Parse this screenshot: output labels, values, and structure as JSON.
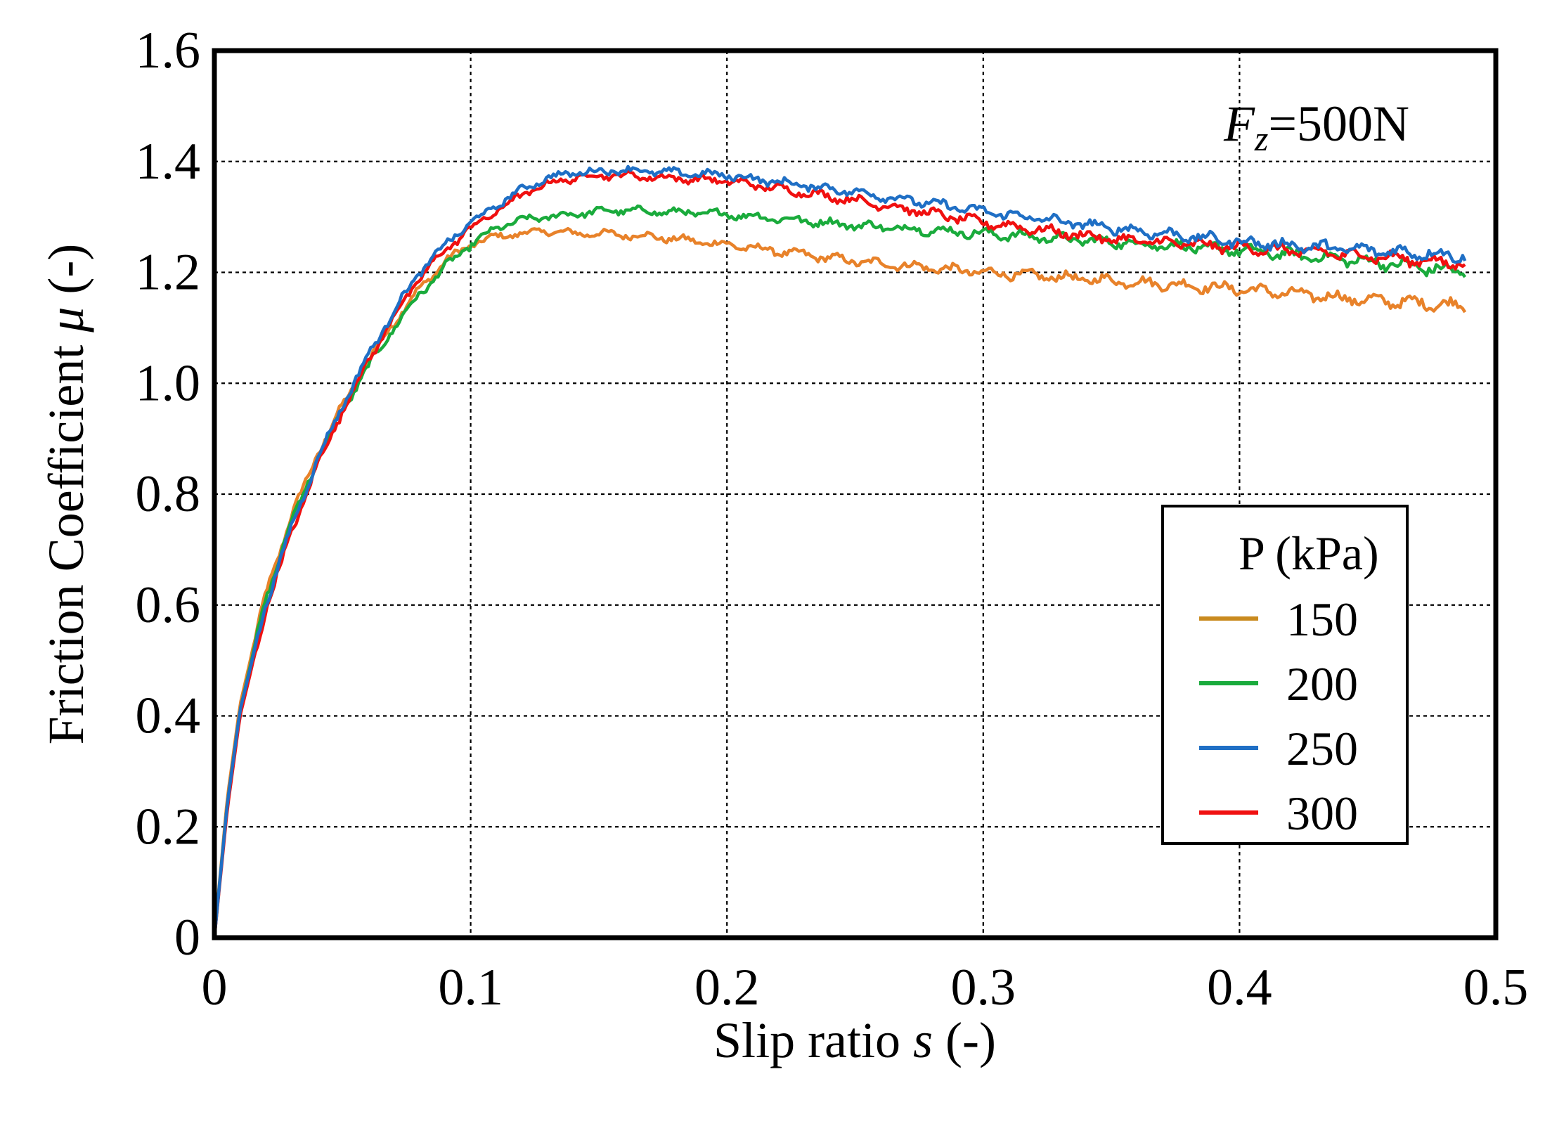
{
  "chart_data": {
    "type": "line",
    "xlabel": {
      "text": "Slip ratio ",
      "italic": "s",
      "suffix": " (-)"
    },
    "ylabel": {
      "text": "Friction Coefficient ",
      "italic": "μ",
      "suffix": " (-)"
    },
    "xlim": [
      0,
      0.5
    ],
    "ylim": [
      0,
      1.6
    ],
    "xticks": [
      0,
      0.1,
      0.2,
      0.3,
      0.4,
      0.5
    ],
    "xtick_labels": [
      "0",
      "0.1",
      "0.2",
      "0.3",
      "0.4",
      "0.5"
    ],
    "yticks": [
      0,
      0.2,
      0.4,
      0.6,
      0.8,
      1.0,
      1.2,
      1.4,
      1.6
    ],
    "ytick_labels": [
      "0",
      "0.2",
      "0.4",
      "0.6",
      "0.8",
      "1.0",
      "1.2",
      "1.4",
      "1.6"
    ],
    "grid": true,
    "annotation": {
      "var": "F",
      "sub": "z",
      "value": "=500N"
    },
    "legend": {
      "title": "P (kPa)",
      "placement": "center-right"
    },
    "series": [
      {
        "name": "150",
        "color": "#e8822a",
        "legend_color": "#c98a1e",
        "x": [
          0,
          0.005,
          0.01,
          0.02,
          0.03,
          0.04,
          0.05,
          0.06,
          0.07,
          0.08,
          0.09,
          0.1,
          0.11,
          0.12,
          0.13,
          0.14,
          0.15,
          0.17,
          0.2,
          0.25,
          0.3,
          0.35,
          0.4,
          0.45,
          0.488
        ],
        "y": [
          0,
          0.25,
          0.42,
          0.62,
          0.76,
          0.87,
          0.96,
          1.04,
          1.11,
          1.17,
          1.22,
          1.25,
          1.265,
          1.27,
          1.275,
          1.27,
          1.27,
          1.265,
          1.25,
          1.22,
          1.2,
          1.185,
          1.17,
          1.15,
          1.14
        ]
      },
      {
        "name": "200",
        "color": "#1aab3c",
        "legend_color": "#1aab3c",
        "x": [
          0,
          0.005,
          0.01,
          0.02,
          0.03,
          0.04,
          0.05,
          0.06,
          0.07,
          0.08,
          0.09,
          0.1,
          0.11,
          0.12,
          0.13,
          0.14,
          0.15,
          0.16,
          0.17,
          0.2,
          0.25,
          0.3,
          0.35,
          0.4,
          0.45,
          0.488
        ],
        "y": [
          0,
          0.24,
          0.41,
          0.61,
          0.75,
          0.86,
          0.95,
          1.03,
          1.1,
          1.16,
          1.21,
          1.25,
          1.28,
          1.295,
          1.3,
          1.305,
          1.31,
          1.312,
          1.31,
          1.305,
          1.285,
          1.27,
          1.255,
          1.24,
          1.22,
          1.2
        ]
      },
      {
        "name": "250",
        "color": "#1f6fc5",
        "legend_color": "#1f6fc5",
        "x": [
          0,
          0.005,
          0.01,
          0.02,
          0.03,
          0.04,
          0.05,
          0.06,
          0.07,
          0.08,
          0.09,
          0.1,
          0.11,
          0.12,
          0.13,
          0.14,
          0.15,
          0.16,
          0.17,
          0.2,
          0.25,
          0.3,
          0.35,
          0.4,
          0.45,
          0.488
        ],
        "y": [
          0,
          0.24,
          0.41,
          0.6,
          0.74,
          0.86,
          0.96,
          1.05,
          1.13,
          1.2,
          1.25,
          1.29,
          1.32,
          1.35,
          1.37,
          1.38,
          1.382,
          1.385,
          1.382,
          1.375,
          1.345,
          1.31,
          1.28,
          1.255,
          1.24,
          1.23
        ]
      },
      {
        "name": "300",
        "color": "#f01010",
        "legend_color": "#f01010",
        "x": [
          0,
          0.005,
          0.01,
          0.02,
          0.03,
          0.04,
          0.05,
          0.06,
          0.07,
          0.08,
          0.09,
          0.1,
          0.11,
          0.12,
          0.13,
          0.14,
          0.15,
          0.16,
          0.17,
          0.2,
          0.25,
          0.3,
          0.35,
          0.4,
          0.45,
          0.488
        ],
        "y": [
          0,
          0.23,
          0.4,
          0.59,
          0.73,
          0.85,
          0.95,
          1.04,
          1.12,
          1.19,
          1.24,
          1.28,
          1.31,
          1.34,
          1.36,
          1.37,
          1.375,
          1.375,
          1.372,
          1.365,
          1.33,
          1.29,
          1.26,
          1.245,
          1.23,
          1.215
        ]
      }
    ]
  }
}
